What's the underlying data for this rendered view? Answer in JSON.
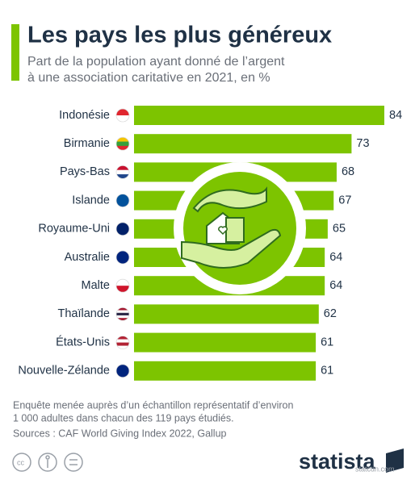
{
  "chart_data": {
    "type": "bar",
    "orientation": "horizontal",
    "title": "Les pays les plus généreux",
    "subtitle": [
      "Part de la population ayant donné de l’argent",
      "à une association caritative en 2021, en %"
    ],
    "categories": [
      "Indonésie",
      "Birmanie",
      "Pays-Bas",
      "Islande",
      "Royaume-Uni",
      "Australie",
      "Malte",
      "Thaïlande",
      "États-Unis",
      "Nouvelle-Zélande"
    ],
    "values": [
      84,
      73,
      68,
      67,
      65,
      64,
      64,
      62,
      61,
      61
    ],
    "color": "#7dc400"
  },
  "footer": {
    "note": [
      "Enquête menée auprès d’un échantillon représentatif d’environ",
      "1 000 adultes dans chacun des 119 pays étudiés."
    ],
    "source": "Sources : CAF World Giving Index 2022, Gallup",
    "brand": "statista",
    "watermark": "statcdn.com"
  }
}
